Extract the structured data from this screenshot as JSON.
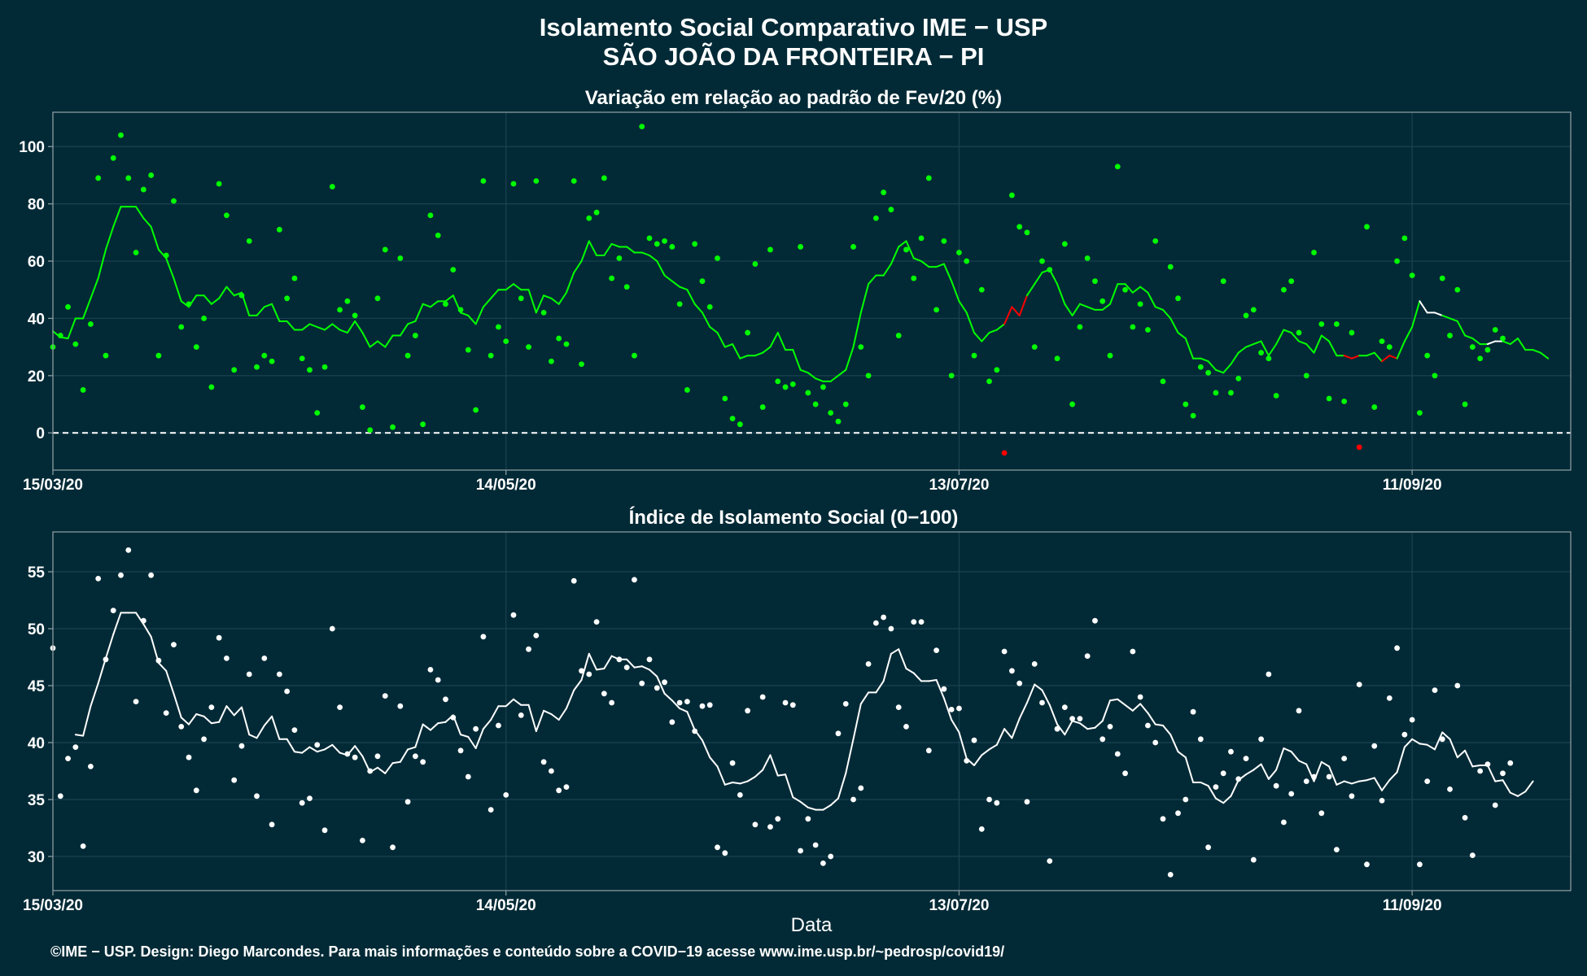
{
  "title_line1": "Isolamento Social Comparativo IME − USP",
  "title_line2": "SÃO JOÃO DA FRONTEIRA − PI",
  "footer": "©IME − USP. Design: Diego Marcondes. Para mais informações e conteúdo sobre a COVID−19 acesse www.ime.usp.br/~pedrosp/covid19/",
  "colors": {
    "background": "#022a36",
    "panel_border": "#8a9aa0",
    "grid": "#1b4250",
    "positive": "#00ff00",
    "negative": "#ff0000",
    "index": "#ffffff",
    "text": "#ffffff"
  },
  "chart_data": [
    {
      "type": "scatter",
      "title": "Variação em relação ao padrão de Fev/20 (%)",
      "xlabel": "",
      "ylabel": "",
      "x_start": "15/03/20",
      "x_range": [
        "15/03/20",
        "02/10/20"
      ],
      "x_ticks": [
        "15/03/20",
        "14/05/20",
        "13/07/20",
        "11/09/20"
      ],
      "ylim": [
        -13,
        112
      ],
      "y_ticks": [
        0,
        20,
        40,
        60,
        80,
        100
      ],
      "reference_line": 0,
      "grid": true,
      "series": [
        {
          "kind": "points",
          "values": [
            30,
            34,
            44,
            31,
            15,
            38,
            89,
            27,
            96,
            104,
            89,
            63,
            85,
            90,
            27,
            62,
            81,
            37,
            45,
            30,
            40,
            16,
            87,
            76,
            22,
            48,
            67,
            23,
            27,
            25,
            71,
            47,
            54,
            26,
            22,
            7,
            23,
            86,
            43,
            46,
            41,
            9,
            1,
            47,
            64,
            2,
            61,
            27,
            34,
            3,
            76,
            69,
            45,
            57,
            43,
            29,
            8,
            88,
            27,
            37,
            32,
            87,
            47,
            30,
            88,
            42,
            25,
            33,
            31,
            88,
            24,
            75,
            77,
            89,
            54,
            61,
            51,
            27,
            107,
            68,
            66,
            67,
            65,
            45,
            15,
            66,
            53,
            44,
            61,
            12,
            5,
            3,
            35,
            59,
            9,
            64,
            18,
            16,
            17,
            65,
            14,
            10,
            16,
            7,
            4,
            10,
            65,
            30,
            20,
            75,
            84,
            78,
            34,
            64,
            54,
            68,
            89,
            43,
            67,
            20,
            63,
            60,
            27,
            50,
            18,
            22,
            -7,
            83,
            72,
            70,
            30,
            60,
            57,
            26,
            66,
            10,
            37,
            61,
            53,
            46,
            27,
            93,
            50,
            37,
            45,
            36,
            67,
            18,
            58,
            47,
            10,
            6,
            23,
            21,
            14,
            53,
            14,
            19,
            41,
            43,
            28,
            26,
            13,
            50,
            53,
            35,
            20,
            63,
            38,
            12,
            38,
            11,
            35,
            -5,
            72,
            9,
            32,
            30,
            60,
            68,
            55,
            7,
            27,
            20,
            54,
            34,
            50,
            10,
            30,
            26,
            29,
            36,
            33
          ]
        },
        {
          "kind": "moving_average",
          "values": [
            35.5,
            33.4,
            33,
            40,
            40,
            47,
            54,
            64,
            72,
            79,
            79,
            79,
            75,
            72,
            64,
            61,
            54,
            46,
            44,
            48,
            48,
            45,
            47,
            51,
            48,
            49,
            41,
            41,
            44,
            45,
            39,
            39,
            36,
            36,
            38,
            37,
            36,
            38,
            36,
            35,
            39,
            35,
            30,
            32,
            30,
            34,
            34,
            38,
            39,
            45,
            44,
            46,
            46,
            48,
            42,
            41,
            38,
            44,
            47,
            50,
            50,
            52,
            50,
            50,
            42,
            48,
            47,
            45,
            49,
            56,
            60,
            67,
            62,
            62,
            66,
            65,
            65,
            63,
            63,
            62,
            60,
            55,
            53,
            51,
            50,
            45,
            42,
            37,
            35,
            30,
            31,
            26,
            27,
            27,
            28,
            30,
            35,
            29,
            29,
            22,
            21,
            19,
            18,
            18,
            20,
            22,
            30,
            42,
            52,
            55,
            55,
            59,
            65,
            67,
            61,
            60,
            58,
            58,
            59,
            53,
            46,
            42,
            35,
            32,
            35,
            36,
            38,
            44,
            41,
            48,
            52,
            56,
            57,
            52,
            45,
            41,
            45,
            44,
            43,
            43,
            45,
            52,
            52,
            49,
            51,
            49,
            44,
            43,
            40,
            35,
            33,
            26,
            26,
            25,
            22,
            21,
            24,
            28,
            30,
            31,
            32,
            27,
            31,
            36,
            35,
            32,
            31,
            28,
            34,
            32,
            27,
            27,
            26,
            27,
            27,
            28,
            25,
            27,
            26,
            32,
            37,
            46,
            42,
            42,
            41,
            40,
            39,
            34,
            33,
            31,
            31,
            32,
            32,
            31,
            33,
            29,
            29,
            28,
            26
          ],
          "negative_segments": [
            [
              126,
              129
            ],
            [
              171,
              173
            ],
            [
              176,
              178
            ]
          ],
          "white_segments": [
            [
              181,
              184
            ],
            [
              190,
              192
            ]
          ]
        }
      ]
    },
    {
      "type": "scatter",
      "title": "Índice de Isolamento Social (0−100)",
      "xlabel": "Data",
      "ylabel": "",
      "x_start": "15/03/20",
      "x_range": [
        "15/03/20",
        "02/10/20"
      ],
      "x_ticks": [
        "15/03/20",
        "14/05/20",
        "13/07/20",
        "11/09/20"
      ],
      "ylim": [
        27,
        58.5
      ],
      "y_ticks": [
        30,
        35,
        40,
        45,
        50,
        55
      ],
      "grid": true,
      "series": [
        {
          "kind": "points",
          "values": [
            48.3,
            35.3,
            38.6,
            39.6,
            30.9,
            37.9,
            54.4,
            47.3,
            51.6,
            54.7,
            56.9,
            43.6,
            50.7,
            54.7,
            47.2,
            42.6,
            48.6,
            41.4,
            38.7,
            35.8,
            40.3,
            43.1,
            49.2,
            47.4,
            36.7,
            39.7,
            46.0,
            35.3,
            47.4,
            32.8,
            46.0,
            44.5,
            41.1,
            34.7,
            35.1,
            39.8,
            32.3,
            50.0,
            43.1,
            39.0,
            38.7,
            31.4,
            37.5,
            38.8,
            44.1,
            30.8,
            43.2,
            34.8,
            38.8,
            38.3,
            46.4,
            45.5,
            43.8,
            42.2,
            39.3,
            37.0,
            41.2,
            49.3,
            34.1,
            41.5,
            35.4,
            51.2,
            42.4,
            48.2,
            49.4,
            38.3,
            37.5,
            35.8,
            36.1,
            54.2,
            46.3,
            46.0,
            50.6,
            44.3,
            43.5,
            47.3,
            46.6,
            54.3,
            45.2,
            47.3,
            44.8,
            45.3,
            41.8,
            43.5,
            43.6,
            41.0,
            43.2,
            43.3,
            30.8,
            30.3,
            38.2,
            35.4,
            42.8,
            32.8,
            44.0,
            32.6,
            33.3,
            43.5,
            43.3,
            30.5,
            33.3,
            31.0,
            29.4,
            30.0,
            40.8,
            43.4,
            35.0,
            36.0,
            46.9,
            50.5,
            51.0,
            50.0,
            43.1,
            41.4,
            50.6,
            50.6,
            39.3,
            48.1,
            44.7,
            42.9,
            43.0,
            38.4,
            40.2,
            32.4,
            35.0,
            34.7,
            48.0,
            46.3,
            45.2,
            34.8,
            46.9,
            43.5,
            29.6,
            41.2,
            43.1,
            42.1,
            42.1,
            47.6,
            50.7,
            40.3,
            41.4,
            39.0,
            37.3,
            48.0,
            44.0,
            41.5,
            40.0,
            33.3,
            28.4,
            33.8,
            35.0,
            42.7,
            40.3,
            30.8,
            36.1,
            37.3,
            39.2,
            36.8,
            38.6,
            29.7,
            40.3,
            46.0,
            36.2,
            33.0,
            35.5,
            42.8,
            36.6,
            37.0,
            33.8,
            37.0,
            30.6,
            38.6,
            35.3,
            45.1,
            29.3,
            39.7,
            34.9,
            43.9,
            48.3,
            40.7,
            42.0,
            29.3,
            36.6,
            44.6,
            40.3,
            35.9,
            45.0,
            33.4,
            30.1,
            37.5,
            38.1,
            34.5,
            37.3,
            38.2
          ]
        },
        {
          "kind": "moving_average",
          "values": [
            null,
            null,
            null,
            40.7,
            40.6,
            43.2,
            45.2,
            47.4,
            49.5,
            51.4,
            51.4,
            51.4,
            50.4,
            49.3,
            47.0,
            46.3,
            44.3,
            42.2,
            41.6,
            42.5,
            42.3,
            41.7,
            41.8,
            43.2,
            42.4,
            43.1,
            40.7,
            40.4,
            41.5,
            42.3,
            40.3,
            40.3,
            39.2,
            39.1,
            39.6,
            39.2,
            39.4,
            39.8,
            39.1,
            38.9,
            39.7,
            38.8,
            37.4,
            37.8,
            37.3,
            38.2,
            38.3,
            39.4,
            39.6,
            41.6,
            41.1,
            41.7,
            41.8,
            42.4,
            40.7,
            40.5,
            39.5,
            41.2,
            42.0,
            43.2,
            43.2,
            43.8,
            43.3,
            43.3,
            41.0,
            42.8,
            42.5,
            42.0,
            43.0,
            44.6,
            45.5,
            47.8,
            46.4,
            46.5,
            47.6,
            47.3,
            47.3,
            46.6,
            46.7,
            46.4,
            45.8,
            44.3,
            43.7,
            43.0,
            42.7,
            41.1,
            40.2,
            38.7,
            37.9,
            36.3,
            36.5,
            36.4,
            36.6,
            37.0,
            37.6,
            38.9,
            37.1,
            37.2,
            35.2,
            34.8,
            34.3,
            34.1,
            34.1,
            34.5,
            35.1,
            37.3,
            40.3,
            43.4,
            44.4,
            44.4,
            45.4,
            47.8,
            48.2,
            46.5,
            46.1,
            45.4,
            45.4,
            45.5,
            43.9,
            42.0,
            40.9,
            38.6,
            38.0,
            38.9,
            39.4,
            39.8,
            41.2,
            40.4,
            42.1,
            43.5,
            45.1,
            44.6,
            43.3,
            41.6,
            40.7,
            41.9,
            41.7,
            41.2,
            41.3,
            41.9,
            43.7,
            43.8,
            43.3,
            42.8,
            43.4,
            42.6,
            41.6,
            41.5,
            40.7,
            39.2,
            38.7,
            36.5,
            36.5,
            36.2,
            35.1,
            34.7,
            35.3,
            36.7,
            37.2,
            37.6,
            38.1,
            36.8,
            37.6,
            39.5,
            39.2,
            38.4,
            38.1,
            36.6,
            38.3,
            37.9,
            36.3,
            36.6,
            36.4,
            36.6,
            36.7,
            36.9,
            35.8,
            36.7,
            37.4,
            39.6,
            40.3,
            39.9,
            39.8,
            39.4,
            40.9,
            40.3,
            38.7,
            39.3,
            37.9,
            38.0,
            38.0,
            36.6,
            36.7,
            35.6,
            35.3,
            35.7,
            36.6
          ]
        }
      ]
    }
  ]
}
